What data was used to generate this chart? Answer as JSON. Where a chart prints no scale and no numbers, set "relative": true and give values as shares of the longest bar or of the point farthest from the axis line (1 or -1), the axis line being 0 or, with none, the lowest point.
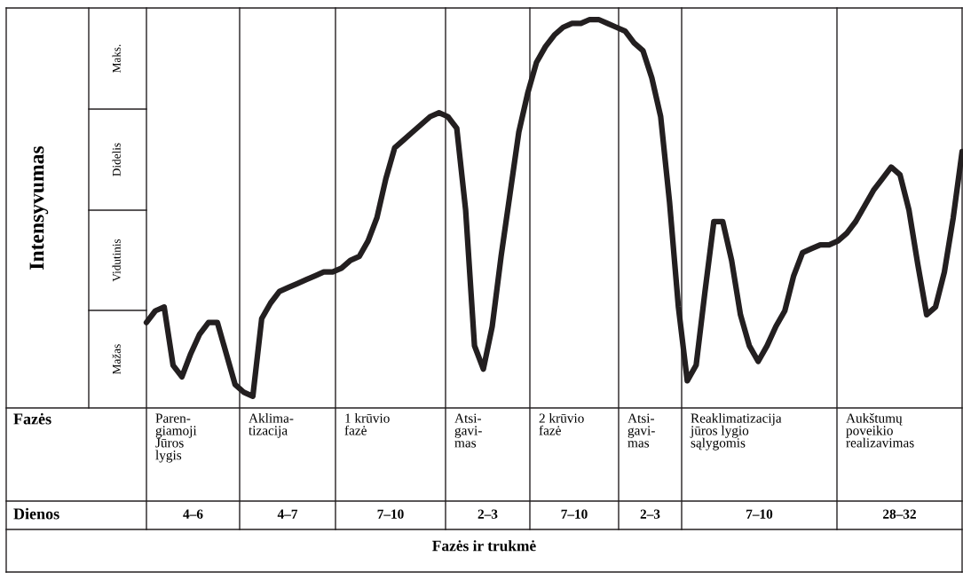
{
  "chart_data": {
    "type": "line",
    "relative": true,
    "ylabel": "Intensyvumas",
    "grid": "x",
    "categories": [
      null,
      null,
      null,
      null,
      null,
      null,
      null,
      null,
      null,
      null,
      null,
      null,
      null,
      null,
      null,
      null,
      null,
      null,
      null,
      null,
      null,
      null,
      null,
      null,
      null,
      null,
      null,
      null,
      null,
      null,
      null,
      null,
      null,
      null,
      null,
      null,
      null,
      null,
      null,
      null,
      null,
      null,
      null,
      null,
      null,
      null,
      null,
      null,
      null,
      null,
      null,
      null,
      null,
      null,
      null,
      null,
      null,
      null,
      null,
      null,
      null,
      null,
      null,
      null,
      null,
      null,
      null,
      null,
      null,
      null,
      null,
      null,
      null,
      null,
      null,
      null,
      null,
      null,
      null,
      null,
      null,
      null,
      null,
      null,
      null,
      null,
      null,
      null,
      null,
      null,
      null,
      null,
      null
    ],
    "series": [
      {
        "color": "#231f20",
        "values": [
          0.22,
          0.25,
          0.26,
          0.11,
          0.08,
          0.14,
          0.19,
          0.22,
          0.22,
          0.14,
          0.06,
          0.04,
          0.03,
          0.23,
          0.27,
          0.3,
          0.31,
          0.32,
          0.33,
          0.34,
          0.35,
          0.35,
          0.36,
          0.38,
          0.39,
          0.43,
          0.49,
          0.59,
          0.67,
          0.69,
          0.71,
          0.73,
          0.75,
          0.76,
          0.75,
          0.72,
          0.51,
          0.16,
          0.1,
          0.21,
          0.39,
          0.55,
          0.71,
          0.81,
          0.89,
          0.93,
          0.96,
          0.98,
          0.99,
          0.99,
          1.0,
          1.0,
          0.99,
          0.98,
          0.97,
          0.94,
          0.92,
          0.85,
          0.75,
          0.53,
          0.26,
          0.07,
          0.11,
          0.3,
          0.48,
          0.48,
          0.38,
          0.24,
          0.16,
          0.12,
          0.16,
          0.21,
          0.25,
          0.34,
          0.4,
          0.41,
          0.42,
          0.42,
          0.43,
          0.45,
          0.48,
          0.52,
          0.56,
          0.59,
          0.62,
          0.6,
          0.51,
          0.37,
          0.24,
          0.26,
          0.35,
          0.49,
          0.66
        ]
      }
    ],
    "annotations": [
      "Mažas",
      "Vidutinis",
      "Didelis",
      "Maks.",
      "Fazės",
      "Paren-\ngiamoji\nJūros\nlygis",
      "Aklima-\ntizacija",
      "1 krūvio\nfazė",
      "Atsi-\ngavi-\nmas",
      "2 krūvio\nfazė",
      "Atsi-\ngavi-\nmas",
      "Reaklimatizacija\njūros lygio\nsąlygomis",
      "Aukštumų\npoveikio\nrealizavimas",
      "Dienos",
      "4–6",
      "4–7",
      "7–10",
      "2–3",
      "7–10",
      "2–3",
      "7–10",
      "28–32",
      "Fazės ir trukmė"
    ]
  }
}
